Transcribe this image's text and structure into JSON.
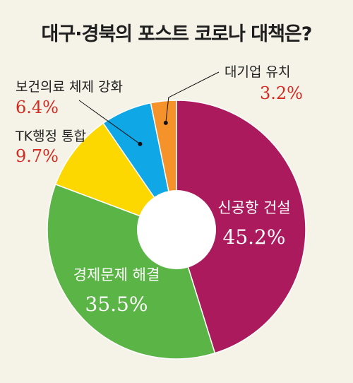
{
  "title": "대구·경북의 포스트 코로나 대책은?",
  "colors": {
    "background": "#f5f3e8",
    "value_red": "#d42a20",
    "label_dark": "#222222"
  },
  "chart_data": {
    "type": "pie",
    "title": "대구·경북의 포스트 코로나 대책은?",
    "unit": "%",
    "donut": true,
    "start": "12 o'clock, clockwise",
    "slices": [
      {
        "label": "신공항 건설",
        "value": 45.2,
        "display": "45.2%",
        "color": "#ab1a5c",
        "label_placement": "inside"
      },
      {
        "label": "경제문제 해결",
        "value": 35.5,
        "display": "35.5%",
        "color": "#5bb446",
        "label_placement": "inside"
      },
      {
        "label": "TK행정 통합",
        "value": 9.7,
        "display": "9.7%",
        "color": "#fcd800",
        "label_placement": "outside"
      },
      {
        "label": "보건의료 체제 강화",
        "value": 6.4,
        "display": "6.4%",
        "color": "#0fa7e6",
        "label_placement": "outside"
      },
      {
        "label": "대기업 유치",
        "value": 3.2,
        "display": "3.2%",
        "color": "#f5922a",
        "label_placement": "outside"
      }
    ]
  }
}
